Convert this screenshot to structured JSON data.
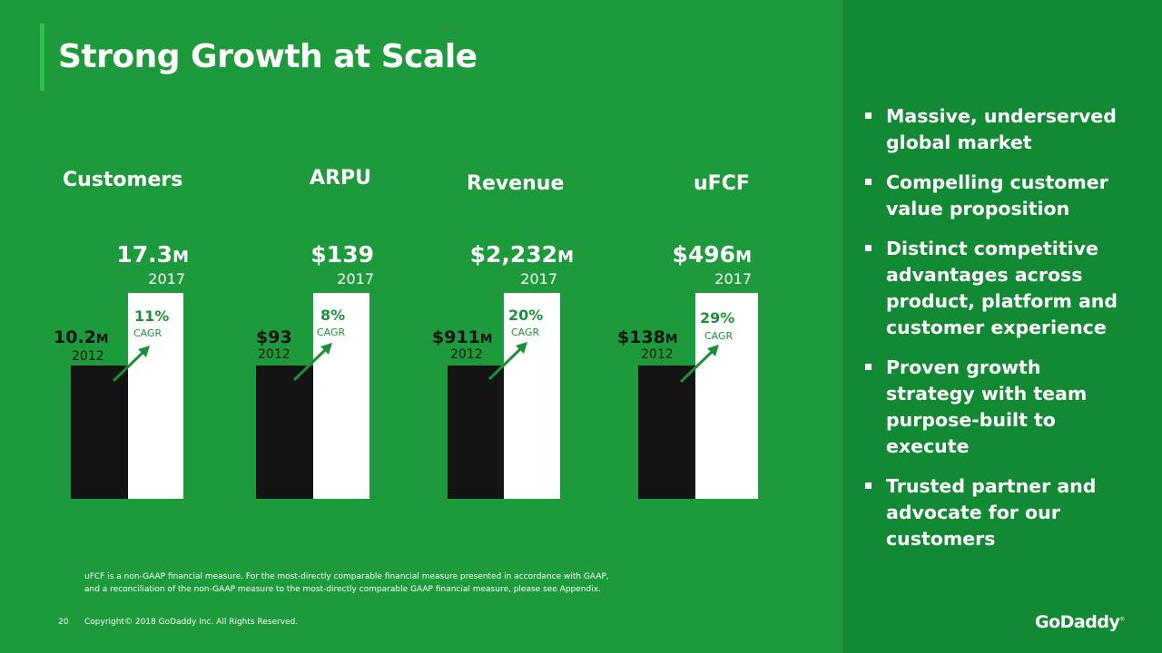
{
  "title": "Strong Growth at Scale",
  "chart_data": {
    "type": "bar",
    "categories": [
      "Customers",
      "ARPU",
      "Revenue",
      "uFCF"
    ],
    "series": [
      {
        "name": "2012",
        "values": [
          10.2,
          93,
          911,
          138
        ]
      },
      {
        "name": "2017",
        "values": [
          17.3,
          139,
          2232,
          496
        ]
      }
    ],
    "units": [
      "M",
      "$",
      "$M",
      "$M"
    ],
    "cagr": [
      "11%",
      "8%",
      "20%",
      "29%"
    ],
    "colors": {
      "2012": "#141414",
      "2017": "#ffffff",
      "accent": "#1d8f36"
    }
  },
  "metrics": [
    {
      "title": "Customers",
      "end_value": "17.3",
      "end_unit": "M",
      "end_year": "2017",
      "start_value": "10.2",
      "start_unit": "M",
      "start_year": "2012",
      "cagr": "11%",
      "cagr_label": "CAGR"
    },
    {
      "title": "ARPU",
      "end_value": "$139",
      "end_unit": "",
      "end_year": "2017",
      "start_value": "$93",
      "start_unit": "",
      "start_year": "2012",
      "cagr": "8%",
      "cagr_label": "CAGR"
    },
    {
      "title": "Revenue",
      "end_value": "$2,232",
      "end_unit": "M",
      "end_year": "2017",
      "start_value": "$911",
      "start_unit": "M",
      "start_year": "2012",
      "cagr": "20%",
      "cagr_label": "CAGR"
    },
    {
      "title": "uFCF",
      "end_value": "$496",
      "end_unit": "M",
      "end_year": "2017",
      "start_value": "$138",
      "start_unit": "M",
      "start_year": "2012",
      "cagr": "29%",
      "cagr_label": "CAGR"
    }
  ],
  "bullets": [
    "Massive, underserved global market",
    "Compelling customer value proposition",
    "Distinct competitive advantages across product, platform and customer experience",
    "Proven growth strategy with team purpose-built to execute",
    "Trusted partner and advocate for our customers"
  ],
  "footnote": {
    "line1": "uFCF is a non-GAAP financial measure. For the most-directly comparable financial measure presented in accordance with GAAP,",
    "line2": "and a reconciliation of the non-GAAP measure to the most-directly comparable GAAP financial measure, please see Appendix."
  },
  "footer": {
    "page_number": "20",
    "copyright": "Copyright© 2018 GoDaddy Inc.   All Rights Reserved.",
    "logo": "GoDaddy",
    "logo_mark": "®"
  }
}
